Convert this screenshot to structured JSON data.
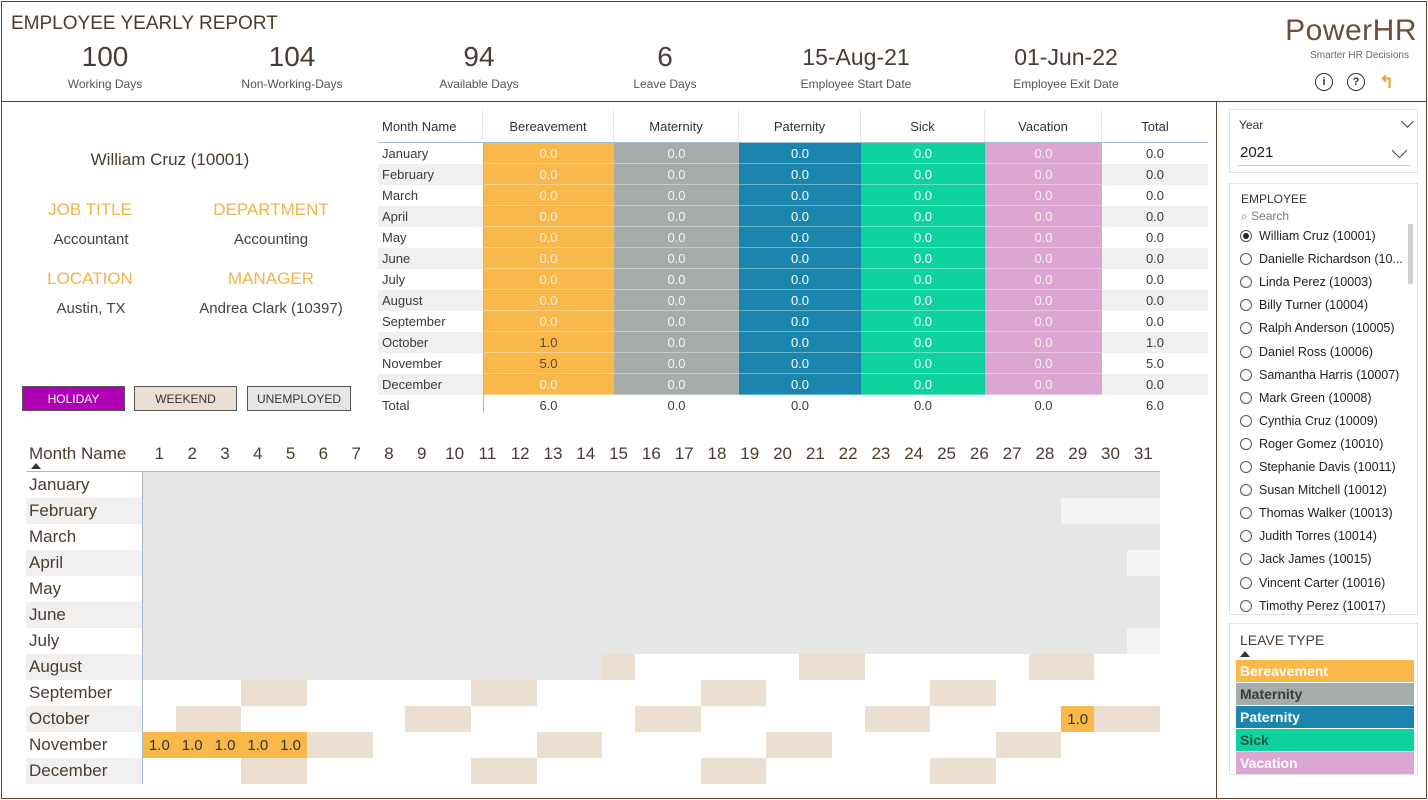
{
  "header": {
    "title": "EMPLOYEE YEARLY REPORT",
    "kpis": [
      {
        "value": "100",
        "label": "Working Days"
      },
      {
        "value": "104",
        "label": "Non-Working-Days"
      },
      {
        "value": "94",
        "label": "Available Days"
      },
      {
        "value": "6",
        "label": "Leave Days"
      },
      {
        "value": "15-Aug-21",
        "label": "Employee Start Date"
      },
      {
        "value": "01-Jun-22",
        "label": "Employee Exit Date"
      }
    ],
    "brand_name": "PowerHR",
    "brand_tagline": "Smarter HR Decisions",
    "icons": [
      "info-icon",
      "help-icon",
      "back-icon"
    ]
  },
  "employee": {
    "name": "William Cruz (10001)",
    "job_title_label": "JOB TITLE",
    "job_title": "Accountant",
    "department_label": "DEPARTMENT",
    "department": "Accounting",
    "location_label": "LOCATION",
    "location": "Austin, TX",
    "manager_label": "MANAGER",
    "manager": "Andrea Clark (10397)"
  },
  "legend_buttons": [
    {
      "label": "HOLIDAY",
      "bg": "#b000b5",
      "fg": "#ffffff"
    },
    {
      "label": "WEEKEND",
      "bg": "#ebdfd1",
      "fg": "#333333"
    },
    {
      "label": "UNEMPLOYED",
      "bg": "#e6e6e6",
      "fg": "#333333"
    }
  ],
  "monthly": {
    "headers": [
      "Month Name",
      "Bereavement",
      "Maternity",
      "Paternity",
      "Sick",
      "Vacation",
      "Total"
    ],
    "colors": {
      "Bereavement": "#f9b84a",
      "Maternity": "#a5aca9",
      "Paternity": "#1a86ad",
      "Sick": "#0fd39f",
      "Vacation": "#dba6d2"
    },
    "rows": [
      [
        "January",
        "0.0",
        "0.0",
        "0.0",
        "0.0",
        "0.0",
        "0.0"
      ],
      [
        "February",
        "0.0",
        "0.0",
        "0.0",
        "0.0",
        "0.0",
        "0.0"
      ],
      [
        "March",
        "0.0",
        "0.0",
        "0.0",
        "0.0",
        "0.0",
        "0.0"
      ],
      [
        "April",
        "0.0",
        "0.0",
        "0.0",
        "0.0",
        "0.0",
        "0.0"
      ],
      [
        "May",
        "0.0",
        "0.0",
        "0.0",
        "0.0",
        "0.0",
        "0.0"
      ],
      [
        "June",
        "0.0",
        "0.0",
        "0.0",
        "0.0",
        "0.0",
        "0.0"
      ],
      [
        "July",
        "0.0",
        "0.0",
        "0.0",
        "0.0",
        "0.0",
        "0.0"
      ],
      [
        "August",
        "0.0",
        "0.0",
        "0.0",
        "0.0",
        "0.0",
        "0.0"
      ],
      [
        "September",
        "0.0",
        "0.0",
        "0.0",
        "0.0",
        "0.0",
        "0.0"
      ],
      [
        "October",
        "1.0",
        "0.0",
        "0.0",
        "0.0",
        "0.0",
        "1.0"
      ],
      [
        "November",
        "5.0",
        "0.0",
        "0.0",
        "0.0",
        "0.0",
        "5.0"
      ],
      [
        "December",
        "0.0",
        "0.0",
        "0.0",
        "0.0",
        "0.0",
        "0.0"
      ]
    ],
    "total": [
      "Total",
      "6.0",
      "0.0",
      "0.0",
      "0.0",
      "0.0",
      "6.0"
    ]
  },
  "calendar": {
    "header": "Month Name",
    "days": [
      "1",
      "2",
      "3",
      "4",
      "5",
      "6",
      "7",
      "8",
      "9",
      "10",
      "11",
      "12",
      "13",
      "14",
      "15",
      "16",
      "17",
      "18",
      "19",
      "20",
      "21",
      "22",
      "23",
      "24",
      "25",
      "26",
      "27",
      "28",
      "29",
      "30",
      "31"
    ],
    "months": [
      "January",
      "February",
      "March",
      "April",
      "May",
      "June",
      "July",
      "August",
      "September",
      "October",
      "November",
      "December"
    ],
    "state_colors": {
      "U": "#e6e6e6",
      "W": "#ebdfd1",
      "E": "#ffffff",
      "B": "#f9b84a",
      "N": "#f4f4f4",
      "X": "#ffffff"
    },
    "grid": [
      "UUUUUUUUUUUUUUUUUUUUUUUUUUUUUUU",
      "UUUUUUUUUUUUUUUUUUUUUUUUUUUUNNN",
      "UUUUUUUUUUUUUUUUUUUUUUUUUUUUUUU",
      "UUUUUUUUUUUUUUUUUUUUUUUUUUUUUUN",
      "UUUUUUUUUUUUUUUUUUUUUUUUUUUUUUU",
      "UUUUUUUUUUUUUUUUUUUUUUUUUUUUUUU",
      "UUUUUUUUUUUUUUUUUUUUUUUUUUUUUUN",
      "UUUUUUUUUUUUUUWEEEEEWWEEEEEWWEE",
      "EEEWWEEEEEWWEEEEEWWEEEEEWWEEEEE",
      "EWWEEEEEWWEEEEEWWEEEEEWWEEEEBWW",
      "BBBBBWWEEEEEWWEEEEEWWEEEEEWWEEX",
      "EEEWWEEEEEWWEEEEEWWEEEEEWWEEEEE"
    ],
    "cell_values": [
      {
        "m": 9,
        "d": 29,
        "v": "1.0"
      },
      {
        "m": 10,
        "d": 1,
        "v": "1.0"
      },
      {
        "m": 10,
        "d": 2,
        "v": "1.0"
      },
      {
        "m": 10,
        "d": 3,
        "v": "1.0"
      },
      {
        "m": 10,
        "d": 4,
        "v": "1.0"
      },
      {
        "m": 10,
        "d": 5,
        "v": "1.0"
      }
    ]
  },
  "year_slicer": {
    "label": "Year",
    "value": "2021"
  },
  "employee_slicer": {
    "label": "EMPLOYEE",
    "search_placeholder": "Search",
    "selected": 0,
    "items": [
      "William Cruz (10001)",
      "Danielle Richardson (10...",
      "Linda Perez (10003)",
      "Billy Turner (10004)",
      "Ralph Anderson (10005)",
      "Daniel Ross (10006)",
      "Samantha Harris (10007)",
      "Mark Green (10008)",
      "Cynthia Cruz (10009)",
      "Roger Gomez (10010)",
      "Stephanie Davis (10011)",
      "Susan Mitchell (10012)",
      "Thomas Walker (10013)",
      "Judith Torres (10014)",
      "Jack James (10015)",
      "Vincent Carter (10016)",
      "Timothy Perez (10017)"
    ]
  },
  "leave_type": {
    "label": "LEAVE TYPE",
    "items": [
      {
        "label": "Bereavement",
        "bg": "#f9b84a",
        "fg": "#ffffff"
      },
      {
        "label": "Maternity",
        "bg": "#a5aca9",
        "fg": "#3a3a3a"
      },
      {
        "label": "Paternity",
        "bg": "#1a86ad",
        "fg": "#ffffff"
      },
      {
        "label": "Sick",
        "bg": "#0fd39f",
        "fg": "#1e5a3e"
      },
      {
        "label": "Vacation",
        "bg": "#dba6d2",
        "fg": "#ffffff"
      }
    ]
  }
}
